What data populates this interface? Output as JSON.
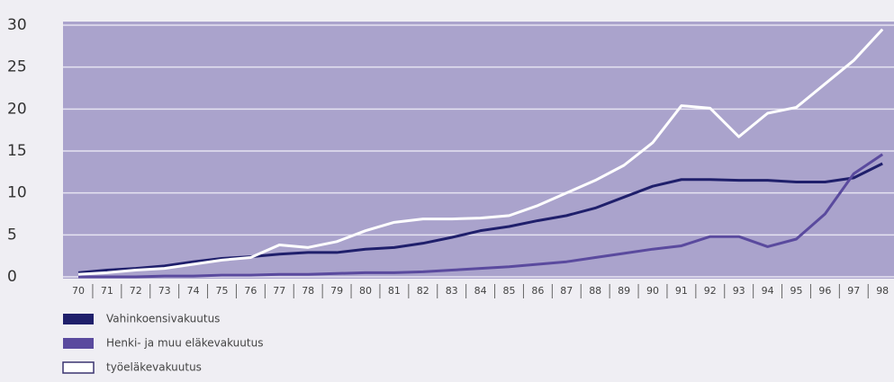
{
  "chart_data": {
    "type": "line",
    "categories": [
      "70",
      "71",
      "72",
      "73",
      "74",
      "75",
      "76",
      "77",
      "78",
      "79",
      "80",
      "81",
      "82",
      "83",
      "84",
      "85",
      "86",
      "87",
      "88",
      "89",
      "90",
      "91",
      "92",
      "93",
      "94",
      "95",
      "96",
      "97",
      "98"
    ],
    "series": [
      {
        "name": "Vahinkoensivakuutus",
        "color": "#1f1f6b",
        "values": [
          0.5,
          0.8,
          1.0,
          1.3,
          1.8,
          2.2,
          2.4,
          2.7,
          2.9,
          2.9,
          3.3,
          3.5,
          4.0,
          4.7,
          5.5,
          6.0,
          6.7,
          7.3,
          8.2,
          9.5,
          10.8,
          11.6,
          11.6,
          11.5,
          11.5,
          11.3,
          11.3,
          11.8,
          13.5
        ]
      },
      {
        "name": "Henki- ja muu eläkevakuutus",
        "color": "#5a4a9e",
        "values": [
          0,
          0,
          0,
          0.1,
          0.1,
          0.2,
          0.2,
          0.3,
          0.3,
          0.4,
          0.5,
          0.5,
          0.6,
          0.8,
          1.0,
          1.2,
          1.5,
          1.8,
          2.3,
          2.8,
          3.3,
          3.7,
          4.8,
          4.8,
          3.6,
          4.5,
          7.5,
          12.3,
          14.6
        ]
      },
      {
        "name": "työeläkevakuutus",
        "color": "#ffffff",
        "values": [
          0.3,
          0.5,
          0.8,
          1.0,
          1.5,
          2.0,
          2.3,
          3.8,
          3.5,
          4.2,
          5.5,
          6.5,
          6.9,
          6.9,
          7.0,
          7.3,
          8.5,
          10.0,
          11.5,
          13.3,
          16.0,
          20.4,
          20.1,
          16.7,
          19.5,
          20.2,
          23.0,
          25.8,
          29.5
        ]
      }
    ],
    "ylim": [
      0,
      30
    ],
    "yticks": [
      0,
      5,
      10,
      15,
      20,
      25,
      30
    ],
    "grid": true
  }
}
